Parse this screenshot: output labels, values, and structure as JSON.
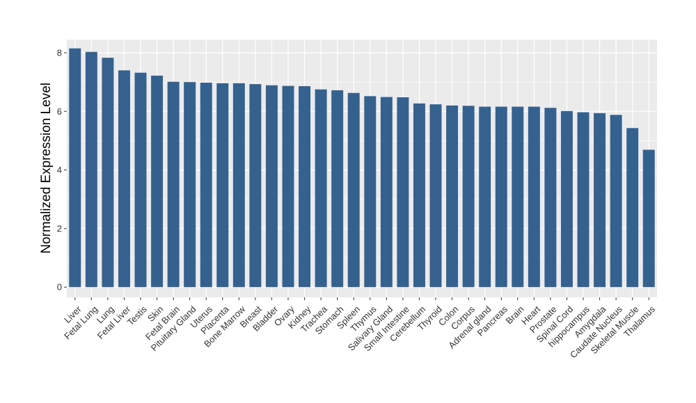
{
  "chart_data": {
    "type": "bar",
    "ylabel": "Normalized Expression Level",
    "xlabel": "",
    "ylim": [
      -0.35,
      8.45
    ],
    "yticks": [
      0,
      2,
      4,
      6,
      8
    ],
    "bar_color": "#35618F",
    "panel_background": "#EBEBEB",
    "grid": true,
    "categories": [
      "Liver",
      "Fetal Lung",
      "Lung",
      "Fetal Liver",
      "Testis",
      "Skin",
      "Fetal Brain",
      "Pituitary Gland",
      "Uterus",
      "Placenta",
      "Bone Marrow",
      "Breast",
      "Bladder",
      "Ovary",
      "Kidney",
      "Trachea",
      "Stomach",
      "Spleen",
      "Thymus",
      "Salivary Gland",
      "Small Intestine",
      "Cerebellum",
      "Thyroid",
      "Colon",
      "Corpus",
      "Adrenal gland",
      "Pancreas",
      "Brain",
      "Heart",
      "Prostate",
      "Spinal Cord",
      "hippocampus",
      "Amygdala",
      "Caudate Nucleus",
      "Skeletal Muscle",
      "Thalamus"
    ],
    "values": [
      8.15,
      8.03,
      7.83,
      7.4,
      7.32,
      7.22,
      7.01,
      7.0,
      6.98,
      6.96,
      6.96,
      6.93,
      6.89,
      6.87,
      6.86,
      6.75,
      6.72,
      6.63,
      6.52,
      6.49,
      6.48,
      6.27,
      6.24,
      6.2,
      6.19,
      6.16,
      6.16,
      6.16,
      6.16,
      6.12,
      6.01,
      5.97,
      5.94,
      5.88,
      5.43,
      4.69
    ]
  }
}
